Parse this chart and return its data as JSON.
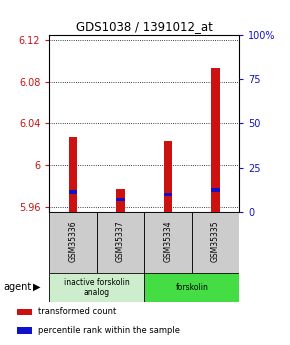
{
  "title": "GDS1038 / 1391012_at",
  "samples": [
    "GSM35336",
    "GSM35337",
    "GSM35334",
    "GSM35335"
  ],
  "bar_bottoms": [
    5.955,
    5.955,
    5.955,
    5.955
  ],
  "bar_tops": [
    6.027,
    5.977,
    6.023,
    6.093
  ],
  "percentile_values": [
    5.974,
    5.967,
    5.972,
    5.976
  ],
  "ylim_left": [
    5.955,
    6.125
  ],
  "ylim_right": [
    0,
    100
  ],
  "yticks_left": [
    5.96,
    6.0,
    6.04,
    6.08,
    6.12
  ],
  "yticks_right": [
    0,
    25,
    50,
    75,
    100
  ],
  "ytick_labels_left": [
    "5.96",
    "6",
    "6.04",
    "6.08",
    "6.12"
  ],
  "ytick_labels_right": [
    "0",
    "25",
    "50",
    "75",
    "100%"
  ],
  "bar_color": "#cc1111",
  "percentile_color": "#1111cc",
  "agent_groups": [
    {
      "label": "inactive forskolin\nanalog",
      "span": [
        0,
        2
      ],
      "color": "#cceecc"
    },
    {
      "label": "forskolin",
      "span": [
        2,
        4
      ],
      "color": "#44dd44"
    }
  ],
  "legend": [
    {
      "color": "#cc1111",
      "label": "transformed count"
    },
    {
      "color": "#1111cc",
      "label": "percentile rank within the sample"
    }
  ],
  "sample_box_color": "#cccccc",
  "bar_width": 0.18
}
